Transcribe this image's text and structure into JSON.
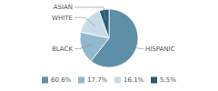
{
  "chart_data": {
    "type": "pie",
    "categories": [
      "HISPANIC",
      "BLACK",
      "WHITE",
      "ASIAN"
    ],
    "values": [
      60.6,
      17.7,
      16.1,
      5.5
    ],
    "value_labels": [
      "60.6%",
      "17.7%",
      "16.1%",
      "5.5%"
    ],
    "colors": [
      "#5e8fa8",
      "#91b8cd",
      "#c8dce8",
      "#2b5c76"
    ],
    "legend": "bottom"
  }
}
